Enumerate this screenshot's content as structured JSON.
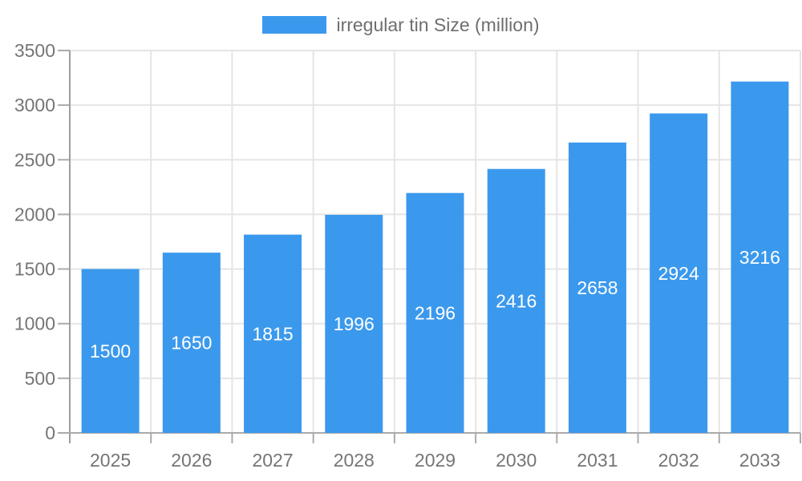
{
  "legend": {
    "label": "irregular tin Size (million)"
  },
  "colors": {
    "bar": "#3B99ED",
    "grid": "#E5E5E5",
    "axis_line": "#9E9E9E",
    "tick_line": "#ABABAB",
    "axis_text": "#757575",
    "legend_text": "#6E6E6E",
    "value_label": "#FFFFFF",
    "background": "#FFFFFF"
  },
  "chart_data": {
    "type": "bar",
    "title": "",
    "xlabel": "",
    "ylabel": "",
    "categories": [
      "2025",
      "2026",
      "2027",
      "2028",
      "2029",
      "2030",
      "2031",
      "2032",
      "2033"
    ],
    "series": [
      {
        "name": "irregular tin Size (million)",
        "values": [
          1500,
          1650,
          1815,
          1996,
          2196,
          2416,
          2658,
          2924,
          3216
        ]
      }
    ],
    "ylim": [
      0,
      3500
    ],
    "ytick_step": 500,
    "ytick_labels": [
      "0",
      "500",
      "1000",
      "1500",
      "2000",
      "2500",
      "3000",
      "3500"
    ],
    "grid": true,
    "legend_position": "top-center",
    "value_labels": "inside-center"
  }
}
